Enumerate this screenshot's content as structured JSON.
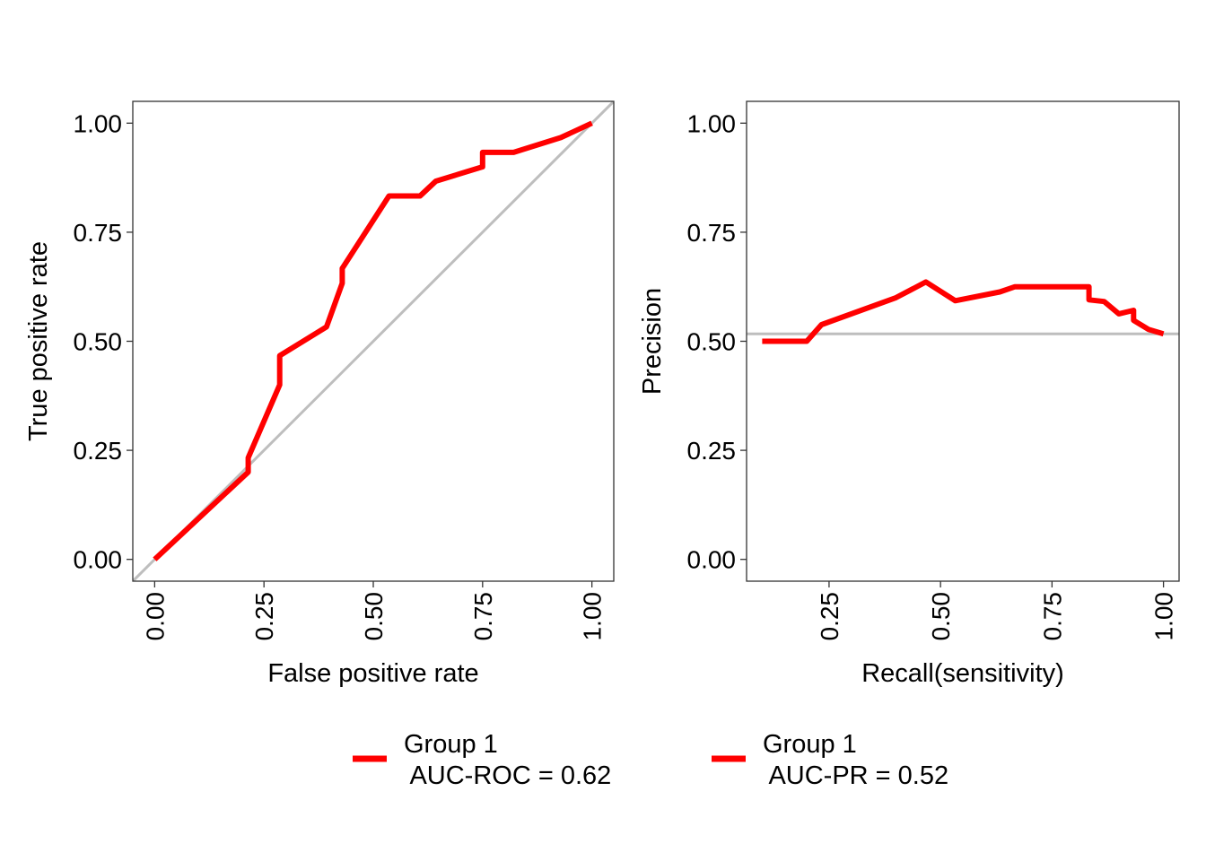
{
  "colors": {
    "series": "#ff0000",
    "reference": "#bebebe",
    "axis": "#333333",
    "text": "#000000"
  },
  "chart_data": [
    {
      "type": "line",
      "xlabel": "False positive rate",
      "ylabel": "True positive rate",
      "xlim": [
        -0.05,
        1.05
      ],
      "ylim": [
        -0.05,
        1.05
      ],
      "xticks": [
        0,
        0.25,
        0.5,
        0.75,
        1
      ],
      "yticks": [
        0,
        0.25,
        0.5,
        0.75,
        1
      ],
      "xtick_labels": [
        "0.00",
        "0.25",
        "0.50",
        "0.75",
        "1.00"
      ],
      "ytick_labels": [
        "0.00",
        "0.25",
        "0.50",
        "0.75",
        "1.00"
      ],
      "grid": false,
      "reference_line": {
        "type": "diagonal"
      },
      "series": [
        {
          "name": "Group 1\n AUC-ROC = 0.62",
          "x": [
            0,
            0.214,
            0.214,
            0.286,
            0.286,
            0.393,
            0.429,
            0.429,
            0.536,
            0.607,
            0.643,
            0.75,
            0.75,
            0.821,
            0.929,
            1.0
          ],
          "y": [
            0,
            0.2,
            0.233,
            0.4,
            0.467,
            0.533,
            0.633,
            0.667,
            0.833,
            0.833,
            0.867,
            0.9,
            0.933,
            0.933,
            0.967,
            1.0
          ]
        }
      ]
    },
    {
      "type": "line",
      "xlabel": "Recall(sensitivity)",
      "ylabel": "Precision",
      "xlim": [
        0.065,
        1.035
      ],
      "ylim": [
        -0.05,
        1.05
      ],
      "xticks": [
        0.25,
        0.5,
        0.75,
        1
      ],
      "yticks": [
        0,
        0.25,
        0.5,
        0.75,
        1
      ],
      "xtick_labels": [
        "0.25",
        "0.50",
        "0.75",
        "1.00"
      ],
      "ytick_labels": [
        "0.00",
        "0.25",
        "0.50",
        "0.75",
        "1.00"
      ],
      "grid": false,
      "reference_line": {
        "type": "horizontal",
        "y": 0.517
      },
      "series": [
        {
          "name": "Group 1\n AUC-PR = 0.52",
          "x": [
            0.1,
            0.2,
            0.233,
            0.4,
            0.467,
            0.533,
            0.633,
            0.667,
            0.833,
            0.833,
            0.867,
            0.9,
            0.933,
            0.933,
            0.967,
            1.0
          ],
          "y": [
            0.5,
            0.5,
            0.538,
            0.6,
            0.636,
            0.593,
            0.613,
            0.625,
            0.625,
            0.595,
            0.591,
            0.563,
            0.571,
            0.548,
            0.527,
            0.517
          ]
        }
      ]
    }
  ]
}
